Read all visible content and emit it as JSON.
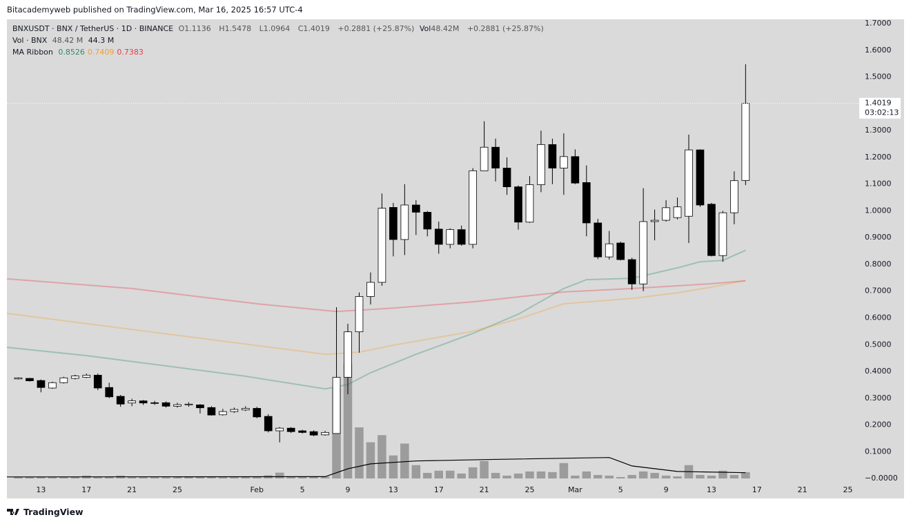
{
  "attribution": "Bitacademyweb published on TradingView.com, Mar 16, 2025 16:57 UTC-4",
  "footer": "TradingView",
  "header": {
    "symbol": "BNXUSDT · BNX / TetherUS · 1D · BINANCE",
    "o": "O",
    "h": "H",
    "l": "L",
    "c": "C",
    "change": "+0.2881 (+25.87%)",
    "vol_label": "Vol",
    "vol_value": "48.42M",
    "vol_change": "+0.2881 (+25.87%)",
    "vol_indicator": "Vol · BNX",
    "vol_indicator_value": "48.42 M",
    "vol_indicator_ma": "44.3 M",
    "ma_label": "MA Ribbon"
  },
  "chart_data": {
    "type": "candlestick",
    "countdown": "03:02:13",
    "categories": [
      "2025-01-11",
      "2025-01-12",
      "2025-01-13",
      "2025-01-14",
      "2025-01-15",
      "2025-01-16",
      "2025-01-17",
      "2025-01-18",
      "2025-01-19",
      "2025-01-20",
      "2025-01-21",
      "2025-01-22",
      "2025-01-23",
      "2025-01-24",
      "2025-01-25",
      "2025-01-26",
      "2025-01-27",
      "2025-01-28",
      "2025-01-29",
      "2025-01-30",
      "2025-01-31",
      "2025-02-01",
      "2025-02-02",
      "2025-02-03",
      "2025-02-04",
      "2025-02-05",
      "2025-02-06",
      "2025-02-07",
      "2025-02-08",
      "2025-02-09",
      "2025-02-10",
      "2025-02-11",
      "2025-02-12",
      "2025-02-13",
      "2025-02-14",
      "2025-02-15",
      "2025-02-16",
      "2025-02-17",
      "2025-02-18",
      "2025-02-19",
      "2025-02-20",
      "2025-02-21",
      "2025-02-22",
      "2025-02-23",
      "2025-02-24",
      "2025-02-25",
      "2025-02-26",
      "2025-02-27",
      "2025-02-28",
      "2025-03-01",
      "2025-03-02",
      "2025-03-03",
      "2025-03-04",
      "2025-03-05",
      "2025-03-06",
      "2025-03-07",
      "2025-03-08",
      "2025-03-09",
      "2025-03-10",
      "2025-03-11",
      "2025-03-12",
      "2025-03-13",
      "2025-03-14",
      "2025-03-15",
      "2025-03-16"
    ],
    "candles": {
      "up_color": "#ffffff",
      "down_color": "#000000",
      "border_color": "#000000",
      "open": [
        0.372,
        0.374,
        0.366,
        0.338,
        0.358,
        0.374,
        0.378,
        0.386,
        0.34,
        0.307,
        0.282,
        0.29,
        0.283,
        0.283,
        0.27,
        0.275,
        0.275,
        0.265,
        0.238,
        0.25,
        0.256,
        0.262,
        0.232,
        0.178,
        0.188,
        0.178,
        0.175,
        0.163,
        0.168,
        0.378,
        0.548,
        0.68,
        0.733,
        1.013,
        0.893,
        1.022,
        0.995,
        0.932,
        0.875,
        0.93,
        0.875,
        1.15,
        1.238,
        1.16,
        1.09,
        0.958,
        1.098,
        1.248,
        1.16,
        1.203,
        1.106,
        0.955,
        0.828,
        0.88,
        0.818,
        0.727,
        0.96,
        0.965,
        0.975,
        0.98,
        1.228,
        1.025,
        0.833,
        0.993,
        1.1136
      ],
      "high": [
        0.378,
        0.376,
        0.37,
        0.362,
        0.38,
        0.388,
        0.392,
        0.392,
        0.358,
        0.312,
        0.298,
        0.293,
        0.29,
        0.288,
        0.283,
        0.285,
        0.278,
        0.27,
        0.26,
        0.265,
        0.27,
        0.268,
        0.24,
        0.192,
        0.192,
        0.182,
        0.18,
        0.178,
        0.64,
        0.578,
        0.695,
        0.77,
        1.065,
        1.03,
        1.1,
        1.04,
        1.0,
        0.96,
        0.935,
        0.945,
        1.16,
        1.335,
        1.27,
        1.2,
        1.095,
        1.13,
        1.3,
        1.27,
        1.29,
        1.23,
        1.17,
        0.97,
        0.925,
        0.885,
        0.825,
        1.085,
        1.005,
        1.04,
        1.05,
        1.285,
        1.23,
        1.03,
        1.0,
        1.148,
        1.5478
      ],
      "low": [
        0.37,
        0.362,
        0.322,
        0.335,
        0.355,
        0.37,
        0.375,
        0.33,
        0.3,
        0.268,
        0.27,
        0.275,
        0.275,
        0.265,
        0.265,
        0.268,
        0.243,
        0.235,
        0.235,
        0.245,
        0.252,
        0.225,
        0.172,
        0.135,
        0.17,
        0.168,
        0.158,
        0.16,
        0.168,
        0.315,
        0.47,
        0.65,
        0.72,
        0.83,
        0.835,
        0.91,
        0.905,
        0.84,
        0.86,
        0.87,
        0.86,
        1.15,
        1.11,
        1.06,
        0.93,
        0.955,
        1.07,
        1.1,
        1.06,
        1.1,
        0.905,
        0.82,
        0.818,
        0.815,
        0.705,
        0.7,
        0.89,
        0.96,
        0.968,
        0.88,
        1.015,
        0.83,
        0.81,
        0.95,
        1.0964
      ],
      "close": [
        0.376,
        0.365,
        0.34,
        0.358,
        0.376,
        0.383,
        0.386,
        0.338,
        0.305,
        0.278,
        0.29,
        0.282,
        0.282,
        0.27,
        0.276,
        0.278,
        0.264,
        0.237,
        0.25,
        0.258,
        0.262,
        0.23,
        0.178,
        0.188,
        0.175,
        0.172,
        0.162,
        0.172,
        0.378,
        0.548,
        0.68,
        0.733,
        1.01,
        0.893,
        1.022,
        0.995,
        0.932,
        0.875,
        0.93,
        0.875,
        1.15,
        1.238,
        1.16,
        1.09,
        0.958,
        1.098,
        1.248,
        1.16,
        1.203,
        1.104,
        0.955,
        0.828,
        0.877,
        0.818,
        0.727,
        0.96,
        0.965,
        1.012,
        1.015,
        1.228,
        1.022,
        0.833,
        0.993,
        1.113,
        1.4019
      ]
    },
    "volume": {
      "color": "#9c9c9c",
      "ylim": [
        0,
        3550
      ],
      "values": [
        10,
        10,
        12,
        10,
        12,
        12,
        22,
        14,
        14,
        22,
        10,
        10,
        10,
        10,
        10,
        12,
        12,
        12,
        10,
        10,
        10,
        14,
        24,
        45,
        14,
        12,
        12,
        14,
        700,
        890,
        395,
        280,
        335,
        178,
        270,
        103,
        43,
        60,
        60,
        38,
        86,
        135,
        43,
        22,
        38,
        54,
        54,
        49,
        119,
        22,
        54,
        27,
        22,
        11,
        27,
        54,
        43,
        22,
        16,
        103,
        27,
        22,
        60,
        27,
        48.42
      ]
    },
    "volume_ma": {
      "color": "#000000",
      "x": [
        "2025-01-10",
        "2025-02-07",
        "2025-02-09",
        "2025-02-11",
        "2025-02-15",
        "2025-02-21",
        "2025-03-04",
        "2025-03-06",
        "2025-03-10",
        "2025-03-16"
      ],
      "values": [
        12,
        14,
        75,
        113,
        135,
        146,
        162,
        97,
        54,
        44.3
      ]
    },
    "ma_ribbon": [
      {
        "color": "#2e8b6a",
        "x": [
          "2025-01-10",
          "2025-01-17",
          "2025-01-31",
          "2025-02-07",
          "2025-02-09",
          "2025-02-11",
          "2025-02-15",
          "2025-02-20",
          "2025-02-24",
          "2025-02-28",
          "2025-03-02",
          "2025-03-06",
          "2025-03-10",
          "2025-03-12",
          "2025-03-14",
          "2025-03-16"
        ],
        "values": [
          0.49,
          0.459,
          0.382,
          0.335,
          0.351,
          0.395,
          0.464,
          0.542,
          0.614,
          0.71,
          0.743,
          0.748,
          0.787,
          0.81,
          0.815,
          0.8526
        ]
      },
      {
        "color": "#f0a030",
        "x": [
          "2025-01-10",
          "2025-02-07",
          "2025-02-10",
          "2025-02-13",
          "2025-02-20",
          "2025-02-24",
          "2025-02-28",
          "2025-03-06",
          "2025-03-10",
          "2025-03-13",
          "2025-03-16"
        ],
        "values": [
          0.617,
          0.464,
          0.472,
          0.498,
          0.55,
          0.596,
          0.653,
          0.673,
          0.694,
          0.715,
          0.7409
        ]
      },
      {
        "color": "#e8394a",
        "x": [
          "2025-01-10",
          "2025-01-21",
          "2025-02-01",
          "2025-02-08",
          "2025-02-13",
          "2025-02-20",
          "2025-02-28",
          "2025-03-06",
          "2025-03-10",
          "2025-03-13",
          "2025-03-16"
        ],
        "values": [
          0.746,
          0.71,
          0.653,
          0.624,
          0.637,
          0.66,
          0.697,
          0.71,
          0.72,
          0.728,
          0.7383
        ]
      }
    ],
    "xlim": [
      "2025-01-10",
      "2025-03-26"
    ],
    "xticks": [
      {
        "value": "2025-01-13",
        "label": "13"
      },
      {
        "value": "2025-01-17",
        "label": "17"
      },
      {
        "value": "2025-01-21",
        "label": "21"
      },
      {
        "value": "2025-01-25",
        "label": "25"
      },
      {
        "value": "2025-02-01",
        "label": "Feb"
      },
      {
        "value": "2025-02-05",
        "label": "5"
      },
      {
        "value": "2025-02-09",
        "label": "9"
      },
      {
        "value": "2025-02-13",
        "label": "13"
      },
      {
        "value": "2025-02-17",
        "label": "17"
      },
      {
        "value": "2025-02-21",
        "label": "21"
      },
      {
        "value": "2025-02-25",
        "label": "25"
      },
      {
        "value": "2025-03-01",
        "label": "Mar"
      },
      {
        "value": "2025-03-05",
        "label": "5"
      },
      {
        "value": "2025-03-09",
        "label": "9"
      },
      {
        "value": "2025-03-13",
        "label": "13"
      },
      {
        "value": "2025-03-17",
        "label": "17"
      },
      {
        "value": "2025-03-21",
        "label": "21"
      },
      {
        "value": "2025-03-25",
        "label": "25"
      }
    ],
    "ylim": [
      -0.018,
      1.716
    ],
    "yticks": [
      {
        "value": 0,
        "label": "−0.0000"
      },
      {
        "value": 0.1,
        "label": "0.1000"
      },
      {
        "value": 0.2,
        "label": "0.2000"
      },
      {
        "value": 0.3,
        "label": "0.3000"
      },
      {
        "value": 0.4,
        "label": "0.4000"
      },
      {
        "value": 0.5,
        "label": "0.5000"
      },
      {
        "value": 0.6,
        "label": "0.6000"
      },
      {
        "value": 0.7,
        "label": "0.7000"
      },
      {
        "value": 0.8,
        "label": "0.8000"
      },
      {
        "value": 0.9,
        "label": "0.9000"
      },
      {
        "value": 1.0,
        "label": "1.0000"
      },
      {
        "value": 1.1,
        "label": "1.1000"
      },
      {
        "value": 1.2,
        "label": "1.2000"
      },
      {
        "value": 1.3,
        "label": "1.3000"
      },
      {
        "value": 1.5,
        "label": "1.5000"
      },
      {
        "value": 1.6,
        "label": "1.6000"
      },
      {
        "value": 1.7,
        "label": "1.7000"
      }
    ],
    "grid": false
  }
}
